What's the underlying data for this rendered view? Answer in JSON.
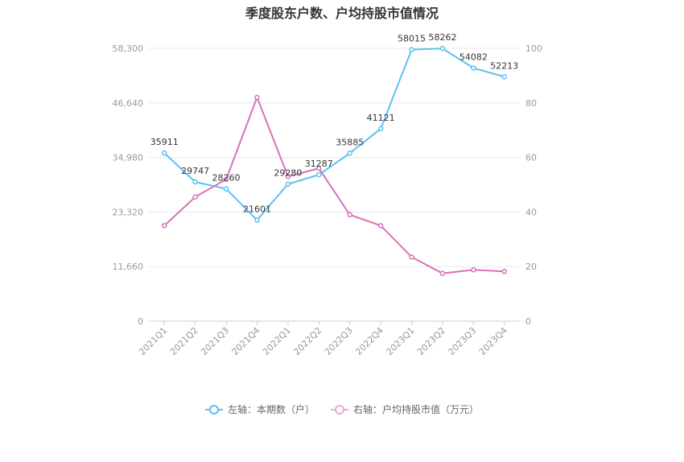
{
  "chart_data": {
    "type": "line",
    "title": "季度股东户数、户均持股市值情况",
    "categories": [
      "2021Q1",
      "2021Q2",
      "2021Q3",
      "2021Q4",
      "2022Q1",
      "2022Q2",
      "2022Q3",
      "2022Q4",
      "2023Q1",
      "2023Q2",
      "2023Q3",
      "2023Q4"
    ],
    "left_axis": {
      "ticks": [
        "0",
        "11,660",
        "23,320",
        "34,980",
        "46,640",
        "58,300"
      ],
      "min": 0,
      "max": 58300
    },
    "right_axis": {
      "ticks": [
        "0",
        "20",
        "40",
        "60",
        "80",
        "100"
      ],
      "min": 0,
      "max": 100
    },
    "series": [
      {
        "name": "左轴：本期数（户）",
        "axis": "left",
        "color": "#5bc2f0",
        "values": [
          35911,
          29747,
          28260,
          21601,
          29280,
          31287,
          35885,
          41121,
          58015,
          58262,
          54082,
          52213
        ],
        "labels": [
          "35911",
          "29747",
          "28260",
          "21601",
          "29280",
          "31287",
          "35885",
          "41121",
          "58015",
          "58262",
          "54082",
          "52213"
        ]
      },
      {
        "name": "右轴：户均持股市值（万元）",
        "axis": "right",
        "color": "#d672b8",
        "values": [
          35,
          45.5,
          52,
          82,
          53,
          56,
          39,
          35,
          23.5,
          17.5,
          18.8,
          18.2
        ]
      }
    ],
    "grid": true,
    "legend_position": "bottom"
  }
}
